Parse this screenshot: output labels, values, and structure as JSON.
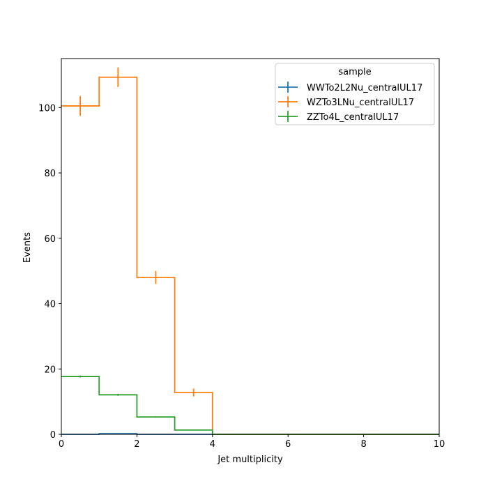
{
  "chart_data": {
    "type": "step-histogram",
    "xlabel": "Jet multiplicity",
    "ylabel": "Events",
    "xlim": [
      0,
      10
    ],
    "ylim": [
      0,
      115
    ],
    "x_ticks": [
      0,
      2,
      4,
      6,
      8,
      10
    ],
    "y_ticks": [
      0,
      20,
      40,
      60,
      80,
      100
    ],
    "grid": false,
    "legend": {
      "title": "sample",
      "placement": "top-right"
    },
    "bin_edges": [
      0,
      1,
      2,
      3,
      4,
      5,
      6,
      7,
      8,
      9,
      10
    ],
    "series": [
      {
        "name": "WWTo2L2Nu_centralUL17",
        "color": "#1f77b4",
        "values": [
          0,
          0.2,
          0,
          0,
          0,
          0,
          0,
          0,
          0,
          0
        ],
        "errors": [
          0,
          0,
          0,
          0,
          0,
          0,
          0,
          0,
          0,
          0
        ]
      },
      {
        "name": "WZTo3LNu_centralUL17",
        "color": "#ff7f0e",
        "values": [
          100.5,
          109.3,
          48.0,
          12.8,
          0,
          0,
          0,
          0,
          0,
          0
        ],
        "errors": [
          3.0,
          3.0,
          2.0,
          1.2,
          0,
          0,
          0,
          0,
          0,
          0
        ]
      },
      {
        "name": "ZZTo4L_centralUL17",
        "color": "#2ca02c",
        "values": [
          17.7,
          12.1,
          5.3,
          1.3,
          0,
          0,
          0,
          0,
          0,
          0
        ],
        "errors": [
          0.3,
          0.3,
          0.2,
          0.1,
          0,
          0,
          0,
          0,
          0,
          0
        ]
      }
    ]
  }
}
